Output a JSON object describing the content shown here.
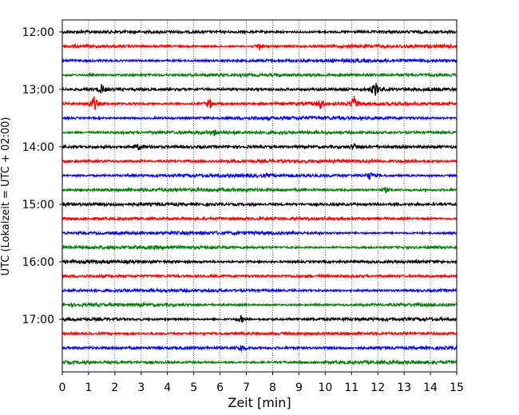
{
  "chart_data": {
    "type": "line",
    "subtype": "helicorder",
    "xlabel": "Zeit  [min]",
    "ylabel": "UTC (Lokalzeit = UTC + 02:00)",
    "xlim": [
      0,
      15
    ],
    "xticks": [
      0,
      1,
      2,
      3,
      4,
      5,
      6,
      7,
      8,
      9,
      10,
      11,
      12,
      13,
      14,
      15
    ],
    "y_tick_labels": [
      "12:00",
      "13:00",
      "14:00",
      "15:00",
      "16:00",
      "17:00"
    ],
    "trace_interval_minutes": 15,
    "start_time": "12:00",
    "trace_count": 24,
    "trace_colors": [
      "#000000",
      "#ff0000",
      "#0000ff",
      "#008000"
    ],
    "vertical_grid": "dotted",
    "events": [
      {
        "trace": 1,
        "minute": 7.5,
        "amplitude": 5
      },
      {
        "trace": 4,
        "minute": 1.5,
        "amplitude": 6
      },
      {
        "trace": 4,
        "minute": 11.9,
        "amplitude": 9
      },
      {
        "trace": 5,
        "minute": 1.2,
        "amplitude": 10
      },
      {
        "trace": 5,
        "minute": 5.6,
        "amplitude": 7
      },
      {
        "trace": 5,
        "minute": 9.8,
        "amplitude": 6
      },
      {
        "trace": 5,
        "minute": 11.1,
        "amplitude": 8
      },
      {
        "trace": 7,
        "minute": 5.8,
        "amplitude": 3
      },
      {
        "trace": 8,
        "minute": 2.9,
        "amplitude": 3
      },
      {
        "trace": 8,
        "minute": 11.1,
        "amplitude": 4
      },
      {
        "trace": 10,
        "minute": 11.7,
        "amplitude": 5
      },
      {
        "trace": 11,
        "minute": 12.3,
        "amplitude": 3
      },
      {
        "trace": 20,
        "minute": 6.8,
        "amplitude": 4
      },
      {
        "trace": 22,
        "minute": 6.8,
        "amplitude": 4
      }
    ]
  }
}
